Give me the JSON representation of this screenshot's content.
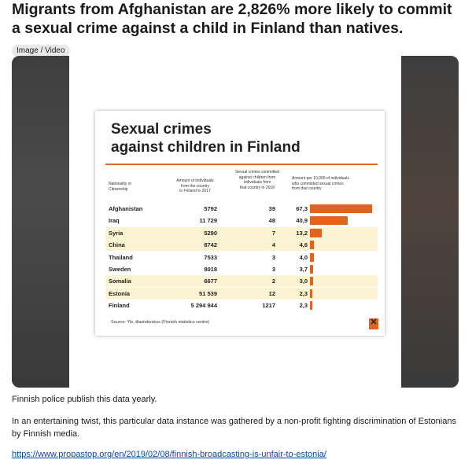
{
  "post": {
    "title": "Migrants from Afghanistan are 2,826% more likely to commit a sexual crime against a child in Finland than natives.",
    "flair": "Image / Video",
    "body_1": "Finnish police publish this data yearly.",
    "body_2": "In an entertaining twist, this particular data instance was gathered by a non-profit fighting discrimination of Estonians by Finnish media.",
    "link": "https://www.propastop.org/en/2019/02/08/finnish-broadcasting-is-unfair-to-estonia/"
  },
  "colors": {
    "accent": "#e0641f",
    "shade": "#fcf3d2"
  },
  "chart_data": {
    "type": "table",
    "title": "Sexual crimes\nagainst children in Finland",
    "headers": [
      "Nationality or\nCitizenship",
      "Amount of individuals\nfrom the country\nin Finland in 2017",
      "Sexual crimes committed\nagainst children from\nindividuals from\nthat country in 2018",
      "Amount per 10,000 of individuals\nwho committed sexual crimes\nfrom that country"
    ],
    "rows": [
      {
        "nationality": "Afghanistan",
        "amount": "5792",
        "crimes": "39",
        "per_10000": "67,3",
        "value": 67.3
      },
      {
        "nationality": "Iraq",
        "amount": "11 729",
        "crimes": "48",
        "per_10000": "40,9",
        "value": 40.9
      },
      {
        "nationality": "Syria",
        "amount": "5290",
        "crimes": "7",
        "per_10000": "13,2",
        "value": 13.2
      },
      {
        "nationality": "China",
        "amount": "8742",
        "crimes": "4",
        "per_10000": "4,6",
        "value": 4.6
      },
      {
        "nationality": "Thailand",
        "amount": "7533",
        "crimes": "3",
        "per_10000": "4,0",
        "value": 4.0
      },
      {
        "nationality": "Sweden",
        "amount": "8018",
        "crimes": "3",
        "per_10000": "3,7",
        "value": 3.7
      },
      {
        "nationality": "Somalia",
        "amount": "6677",
        "crimes": "2",
        "per_10000": "3,0",
        "value": 3.0
      },
      {
        "nationality": "Estonia",
        "amount": "51 539",
        "crimes": "12",
        "per_10000": "2,3",
        "value": 2.3
      },
      {
        "nationality": "Finland",
        "amount": "5 294 944",
        "crimes": "1217",
        "per_10000": "2,3",
        "value": 2.3
      }
    ],
    "shaded_rows": [
      2,
      3,
      6,
      7
    ],
    "source": "Source: Yle, tilastokeskus (Finnish statistics centre)",
    "logo_icon": "propastop-x-logo"
  }
}
